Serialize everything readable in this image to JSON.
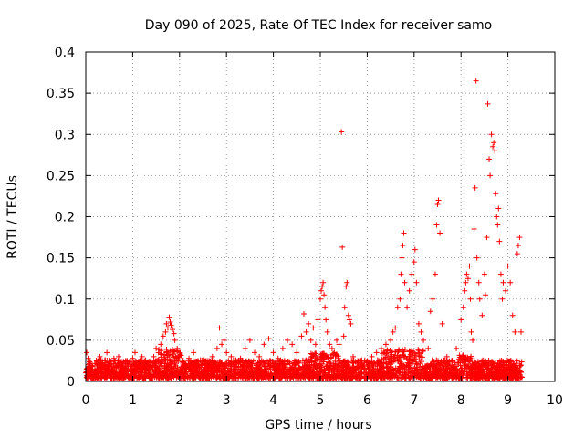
{
  "chart_data": {
    "type": "scatter",
    "title": "Day 090 of 2025, Rate Of TEC Index for receiver samo",
    "xlabel": "GPS time / hours",
    "ylabel": "ROTI / TECUs",
    "xlim": [
      0,
      10
    ],
    "ylim": [
      0,
      0.4
    ],
    "x_ticks": [
      0,
      1,
      2,
      3,
      4,
      5,
      6,
      7,
      8,
      9,
      10
    ],
    "x_tick_labels": [
      "0",
      "1",
      "2",
      "3",
      "4",
      "5",
      "6",
      "7",
      "8",
      "9",
      "10"
    ],
    "y_ticks": [
      0,
      0.05,
      0.1,
      0.15,
      0.2,
      0.25,
      0.3,
      0.35,
      0.4
    ],
    "y_tick_labels": [
      "0",
      "0.05",
      "0.1",
      "0.15",
      "0.2",
      "0.25",
      "0.3",
      "0.35",
      "0.4"
    ],
    "grid": true,
    "marker": "+",
    "marker_color": "#ff0000",
    "series": [
      {
        "name": "ROTI",
        "points": [
          [
            0.02,
            0.035
          ],
          [
            0.05,
            0.028
          ],
          [
            0.1,
            0.022
          ],
          [
            0.15,
            0.018
          ],
          [
            0.2,
            0.012
          ],
          [
            0.25,
            0.02
          ],
          [
            0.3,
            0.03
          ],
          [
            0.35,
            0.025
          ],
          [
            0.4,
            0.015
          ],
          [
            0.45,
            0.035
          ],
          [
            0.5,
            0.02
          ],
          [
            0.55,
            0.012
          ],
          [
            0.6,
            0.028
          ],
          [
            0.65,
            0.018
          ],
          [
            0.7,
            0.03
          ],
          [
            0.75,
            0.022
          ],
          [
            0.8,
            0.015
          ],
          [
            0.85,
            0.025
          ],
          [
            0.9,
            0.018
          ],
          [
            0.95,
            0.012
          ],
          [
            1.0,
            0.028
          ],
          [
            1.05,
            0.035
          ],
          [
            1.1,
            0.02
          ],
          [
            1.15,
            0.015
          ],
          [
            1.2,
            0.03
          ],
          [
            1.25,
            0.025
          ],
          [
            1.3,
            0.018
          ],
          [
            1.35,
            0.012
          ],
          [
            1.4,
            0.022
          ],
          [
            1.45,
            0.03
          ],
          [
            1.5,
            0.04
          ],
          [
            1.55,
            0.035
          ],
          [
            1.6,
            0.045
          ],
          [
            1.65,
            0.055
          ],
          [
            1.7,
            0.06
          ],
          [
            1.72,
            0.07
          ],
          [
            1.75,
            0.065
          ],
          [
            1.78,
            0.078
          ],
          [
            1.8,
            0.072
          ],
          [
            1.82,
            0.068
          ],
          [
            1.85,
            0.063
          ],
          [
            1.88,
            0.058
          ],
          [
            1.9,
            0.05
          ],
          [
            1.95,
            0.04
          ],
          [
            2.0,
            0.03
          ],
          [
            2.1,
            0.022
          ],
          [
            2.2,
            0.028
          ],
          [
            2.3,
            0.035
          ],
          [
            2.4,
            0.02
          ],
          [
            2.5,
            0.025
          ],
          [
            2.6,
            0.018
          ],
          [
            2.7,
            0.03
          ],
          [
            2.8,
            0.04
          ],
          [
            2.85,
            0.065
          ],
          [
            2.9,
            0.045
          ],
          [
            2.95,
            0.05
          ],
          [
            3.0,
            0.035
          ],
          [
            3.1,
            0.03
          ],
          [
            3.2,
            0.022
          ],
          [
            3.3,
            0.028
          ],
          [
            3.4,
            0.04
          ],
          [
            3.5,
            0.05
          ],
          [
            3.6,
            0.035
          ],
          [
            3.7,
            0.03
          ],
          [
            3.8,
            0.045
          ],
          [
            3.9,
            0.052
          ],
          [
            4.0,
            0.035
          ],
          [
            4.1,
            0.028
          ],
          [
            4.2,
            0.04
          ],
          [
            4.3,
            0.05
          ],
          [
            4.4,
            0.045
          ],
          [
            4.5,
            0.035
          ],
          [
            4.6,
            0.055
          ],
          [
            4.65,
            0.082
          ],
          [
            4.7,
            0.06
          ],
          [
            4.75,
            0.07
          ],
          [
            4.8,
            0.05
          ],
          [
            4.85,
            0.065
          ],
          [
            4.9,
            0.045
          ],
          [
            4.95,
            0.075
          ],
          [
            5.0,
            0.1
          ],
          [
            5.02,
            0.11
          ],
          [
            5.04,
            0.115
          ],
          [
            5.06,
            0.12
          ],
          [
            5.08,
            0.105
          ],
          [
            5.1,
            0.09
          ],
          [
            5.12,
            0.075
          ],
          [
            5.15,
            0.06
          ],
          [
            5.2,
            0.045
          ],
          [
            5.25,
            0.04
          ],
          [
            5.3,
            0.035
          ],
          [
            5.35,
            0.05
          ],
          [
            5.4,
            0.045
          ],
          [
            5.45,
            0.303
          ],
          [
            5.47,
            0.163
          ],
          [
            5.5,
            0.055
          ],
          [
            5.52,
            0.09
          ],
          [
            5.55,
            0.115
          ],
          [
            5.57,
            0.12
          ],
          [
            5.6,
            0.08
          ],
          [
            5.62,
            0.075
          ],
          [
            5.65,
            0.07
          ],
          [
            5.7,
            0.03
          ],
          [
            5.8,
            0.025
          ],
          [
            5.9,
            0.02
          ],
          [
            6.0,
            0.025
          ],
          [
            6.1,
            0.03
          ],
          [
            6.2,
            0.035
          ],
          [
            6.3,
            0.04
          ],
          [
            6.4,
            0.045
          ],
          [
            6.5,
            0.05
          ],
          [
            6.55,
            0.06
          ],
          [
            6.6,
            0.065
          ],
          [
            6.65,
            0.09
          ],
          [
            6.7,
            0.1
          ],
          [
            6.72,
            0.13
          ],
          [
            6.74,
            0.15
          ],
          [
            6.76,
            0.165
          ],
          [
            6.78,
            0.18
          ],
          [
            6.8,
            0.12
          ],
          [
            6.85,
            0.09
          ],
          [
            6.9,
            0.11
          ],
          [
            6.95,
            0.13
          ],
          [
            7.0,
            0.145
          ],
          [
            7.02,
            0.16
          ],
          [
            7.05,
            0.12
          ],
          [
            7.1,
            0.07
          ],
          [
            7.15,
            0.06
          ],
          [
            7.2,
            0.05
          ],
          [
            7.3,
            0.04
          ],
          [
            7.35,
            0.085
          ],
          [
            7.4,
            0.1
          ],
          [
            7.45,
            0.13
          ],
          [
            7.48,
            0.19
          ],
          [
            7.5,
            0.215
          ],
          [
            7.52,
            0.22
          ],
          [
            7.55,
            0.18
          ],
          [
            7.6,
            0.07
          ],
          [
            7.7,
            0.03
          ],
          [
            7.8,
            0.025
          ],
          [
            7.9,
            0.04
          ],
          [
            8.0,
            0.075
          ],
          [
            8.05,
            0.09
          ],
          [
            8.08,
            0.11
          ],
          [
            8.1,
            0.12
          ],
          [
            8.12,
            0.13
          ],
          [
            8.15,
            0.125
          ],
          [
            8.18,
            0.14
          ],
          [
            8.2,
            0.1
          ],
          [
            8.22,
            0.06
          ],
          [
            8.25,
            0.05
          ],
          [
            8.28,
            0.185
          ],
          [
            8.3,
            0.235
          ],
          [
            8.32,
            0.365
          ],
          [
            8.34,
            0.15
          ],
          [
            8.38,
            0.12
          ],
          [
            8.4,
            0.1
          ],
          [
            8.45,
            0.08
          ],
          [
            8.5,
            0.13
          ],
          [
            8.52,
            0.105
          ],
          [
            8.55,
            0.175
          ],
          [
            8.57,
            0.337
          ],
          [
            8.6,
            0.27
          ],
          [
            8.62,
            0.25
          ],
          [
            8.65,
            0.3
          ],
          [
            8.68,
            0.285
          ],
          [
            8.7,
            0.29
          ],
          [
            8.72,
            0.28
          ],
          [
            8.74,
            0.228
          ],
          [
            8.76,
            0.2
          ],
          [
            8.78,
            0.19
          ],
          [
            8.8,
            0.21
          ],
          [
            8.82,
            0.17
          ],
          [
            8.85,
            0.13
          ],
          [
            8.88,
            0.1
          ],
          [
            8.9,
            0.12
          ],
          [
            8.95,
            0.11
          ],
          [
            9.0,
            0.14
          ],
          [
            9.05,
            0.12
          ],
          [
            9.1,
            0.08
          ],
          [
            9.15,
            0.06
          ],
          [
            9.2,
            0.155
          ],
          [
            9.22,
            0.165
          ],
          [
            9.25,
            0.175
          ],
          [
            9.28,
            0.06
          ]
        ]
      }
    ]
  }
}
